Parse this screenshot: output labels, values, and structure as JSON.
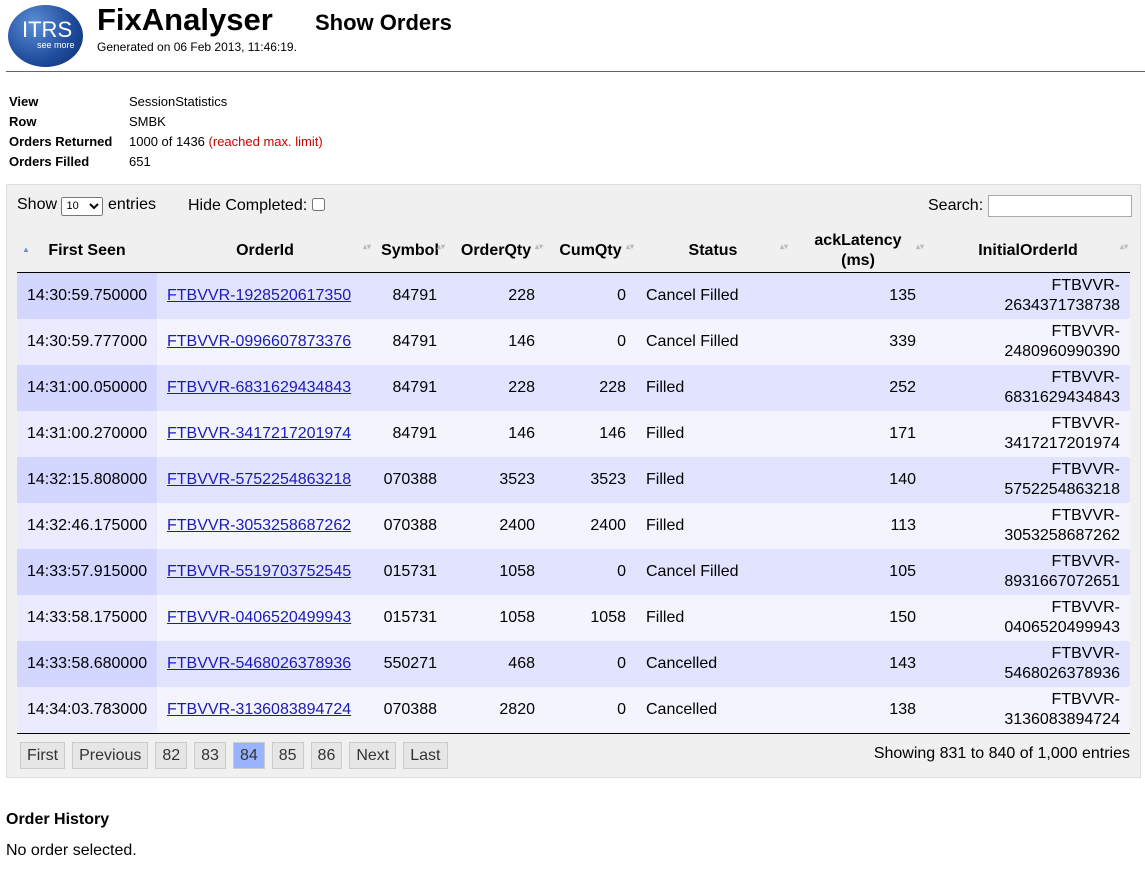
{
  "header": {
    "logo_text": "ITRS",
    "logo_sub": "see more",
    "title": "FixAnalyser",
    "subtitle": "Show Orders",
    "generated": "Generated on 06 Feb 2013, 11:46:19."
  },
  "info": [
    {
      "label": "View",
      "value": "SessionStatistics"
    },
    {
      "label": "Row",
      "value": "SMBK"
    },
    {
      "label": "Orders Returned",
      "value": "1000 of 1436",
      "note": "(reached max. limit)"
    },
    {
      "label": "Orders Filled",
      "value": "651"
    }
  ],
  "controls": {
    "show_label": "Show",
    "page_size": "10",
    "entries_label": "entries",
    "hide_completed": "Hide Completed:",
    "search": "Search:"
  },
  "table": {
    "columns": [
      "First Seen",
      "OrderId",
      "Symbol",
      "OrderQty",
      "CumQty",
      "Status",
      "ackLatency (ms)",
      "InitialOrderId"
    ],
    "rows": [
      [
        "14:30:59.750000",
        "FTBVVR-1928520617350",
        "84791",
        "228",
        "0",
        "Cancel Filled",
        "135",
        "FTBVVR-2634371738738"
      ],
      [
        "14:30:59.777000",
        "FTBVVR-0996607873376",
        "84791",
        "146",
        "0",
        "Cancel Filled",
        "339",
        "FTBVVR-2480960990390"
      ],
      [
        "14:31:00.050000",
        "FTBVVR-6831629434843",
        "84791",
        "228",
        "228",
        "Filled",
        "252",
        "FTBVVR-6831629434843"
      ],
      [
        "14:31:00.270000",
        "FTBVVR-3417217201974",
        "84791",
        "146",
        "146",
        "Filled",
        "171",
        "FTBVVR-3417217201974"
      ],
      [
        "14:32:15.808000",
        "FTBVVR-5752254863218",
        "070388",
        "3523",
        "3523",
        "Filled",
        "140",
        "FTBVVR-5752254863218"
      ],
      [
        "14:32:46.175000",
        "FTBVVR-3053258687262",
        "070388",
        "2400",
        "2400",
        "Filled",
        "113",
        "FTBVVR-3053258687262"
      ],
      [
        "14:33:57.915000",
        "FTBVVR-5519703752545",
        "015731",
        "1058",
        "0",
        "Cancel Filled",
        "105",
        "FTBVVR-8931667072651"
      ],
      [
        "14:33:58.175000",
        "FTBVVR-0406520499943",
        "015731",
        "1058",
        "1058",
        "Filled",
        "150",
        "FTBVVR-0406520499943"
      ],
      [
        "14:33:58.680000",
        "FTBVVR-5468026378936",
        "550271",
        "468",
        "0",
        "Cancelled",
        "143",
        "FTBVVR-5468026378936"
      ],
      [
        "14:34:03.783000",
        "FTBVVR-3136083894724",
        "070388",
        "2820",
        "0",
        "Cancelled",
        "138",
        "FTBVVR-3136083894724"
      ]
    ]
  },
  "pagination": [
    {
      "label": "First"
    },
    {
      "label": "Previous"
    },
    {
      "label": "82"
    },
    {
      "label": "83"
    },
    {
      "label": "84",
      "active": true
    },
    {
      "label": "85"
    },
    {
      "label": "86"
    },
    {
      "label": "Next"
    },
    {
      "label": "Last"
    }
  ],
  "showing": "Showing 831 to 840 of 1,000 entries",
  "history": {
    "title": "Order History",
    "text": "No order selected."
  }
}
